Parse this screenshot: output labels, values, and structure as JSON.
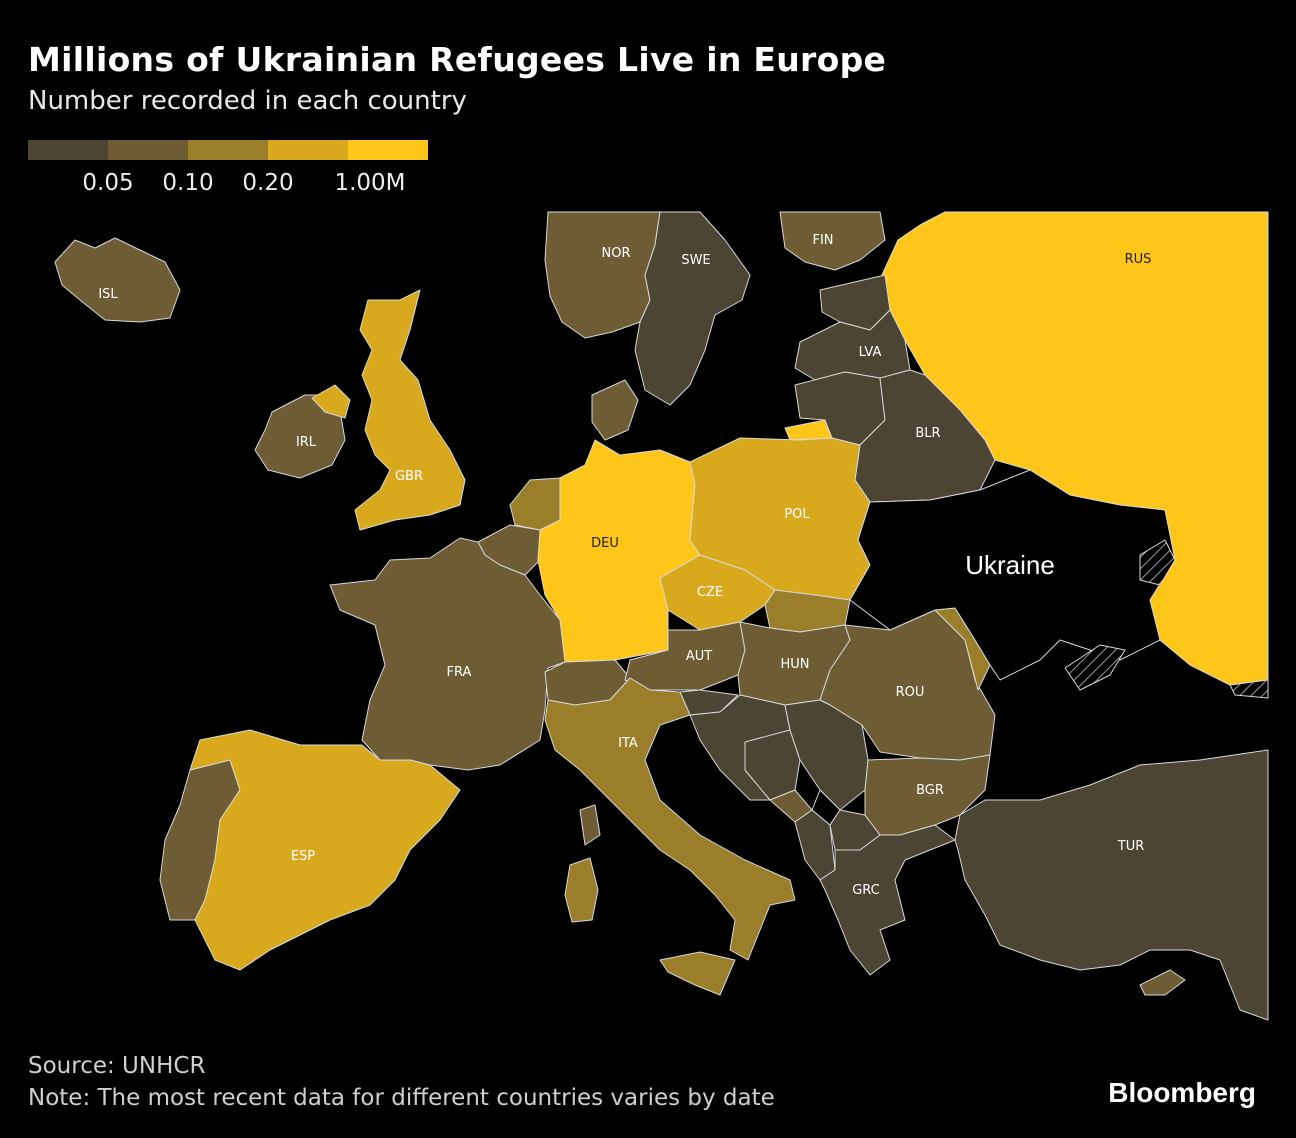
{
  "title": "Millions of Ukrainian Refugees Live in Europe",
  "subtitle": "Number recorded in each country",
  "legend": {
    "colors": [
      "#4d4533",
      "#6e5d34",
      "#9a7e2a",
      "#d8a91c",
      "#ffc61a"
    ],
    "ticks": [
      "0.05",
      "0.10",
      "0.20",
      "1.00M"
    ]
  },
  "map": {
    "focus_label": "Ukraine",
    "countries": [
      {
        "code": "ISL",
        "label": "ISL",
        "bin": 1
      },
      {
        "code": "NOR",
        "label": "NOR",
        "bin": 1
      },
      {
        "code": "SWE",
        "label": "SWE",
        "bin": 0
      },
      {
        "code": "FIN",
        "label": "FIN",
        "bin": 1
      },
      {
        "code": "RUS",
        "label": "RUS",
        "bin": 4
      },
      {
        "code": "LVA",
        "label": "LVA",
        "bin": 0
      },
      {
        "code": "BLR",
        "label": "BLR",
        "bin": 0
      },
      {
        "code": "IRL",
        "label": "IRL",
        "bin": 1
      },
      {
        "code": "GBR",
        "label": "GBR",
        "bin": 3
      },
      {
        "code": "DEU",
        "label": "DEU",
        "bin": 4
      },
      {
        "code": "POL",
        "label": "POL",
        "bin": 3
      },
      {
        "code": "CZE",
        "label": "CZE",
        "bin": 3
      },
      {
        "code": "FRA",
        "label": "FRA",
        "bin": 1
      },
      {
        "code": "AUT",
        "label": "AUT",
        "bin": 1
      },
      {
        "code": "HUN",
        "label": "HUN",
        "bin": 1
      },
      {
        "code": "ROU",
        "label": "ROU",
        "bin": 1
      },
      {
        "code": "ITA",
        "label": "ITA",
        "bin": 2
      },
      {
        "code": "BGR",
        "label": "BGR",
        "bin": 1
      },
      {
        "code": "ESP",
        "label": "ESP",
        "bin": 3
      },
      {
        "code": "GRC",
        "label": "GRC",
        "bin": 0
      },
      {
        "code": "TUR",
        "label": "TUR",
        "bin": 0
      }
    ]
  },
  "source": "Source: UNHCR",
  "note": "Note: The most recent data for different countries varies by date",
  "brand": "Bloomberg"
}
